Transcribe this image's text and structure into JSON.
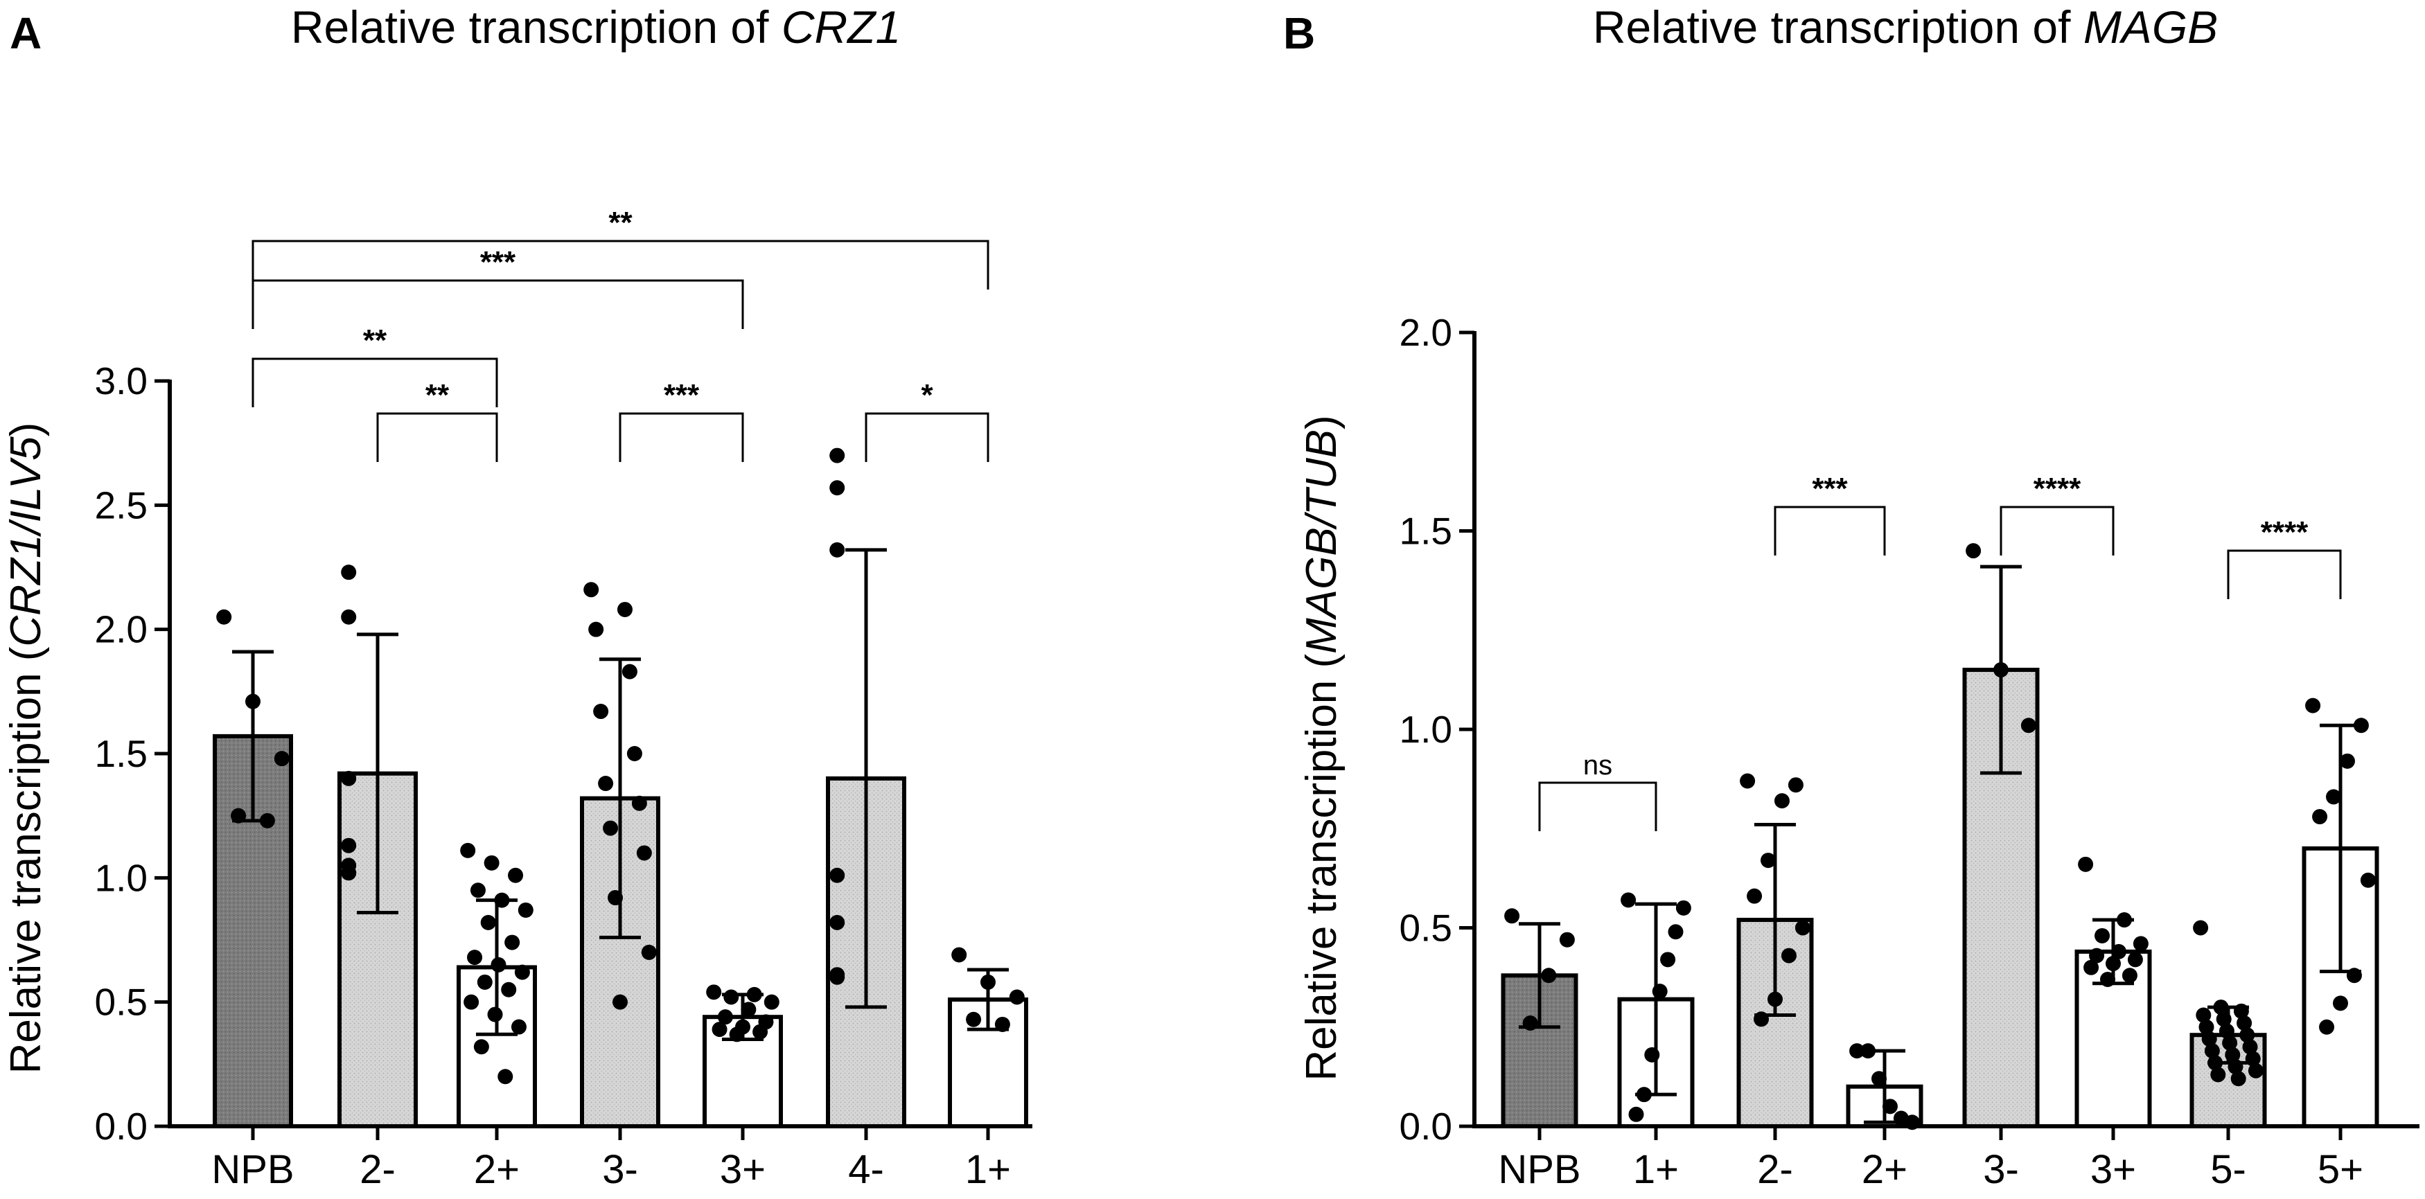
{
  "chart_data": [
    {
      "type": "bar",
      "panel": "A",
      "title": "Relative transcription of ",
      "title_italic": "CRZ1",
      "ylabel_prefix": "Relative transcription (",
      "ylabel_italic": "CRZ1/ILV5",
      "ylabel_suffix": ")",
      "xlabel": "",
      "ylim": [
        0,
        3.0
      ],
      "yticks": [
        0.0,
        0.5,
        1.0,
        1.5,
        2.0,
        2.5,
        3.0
      ],
      "ytick_labels": [
        "0.0",
        "0.5",
        "1.0",
        "1.5",
        "2.0",
        "2.5",
        "3.0"
      ],
      "categories": [
        "NPB",
        "2-",
        "2+",
        "3-",
        "3+",
        "4-",
        "1+"
      ],
      "values": [
        1.57,
        1.42,
        0.64,
        1.32,
        0.44,
        1.4,
        0.51
      ],
      "sd": [
        0.34,
        0.56,
        0.27,
        0.56,
        0.09,
        0.92,
        0.12
      ],
      "fills": [
        "dark",
        "light",
        "white",
        "light",
        "white",
        "light",
        "white"
      ],
      "points": [
        [
          2.05,
          1.71,
          1.48,
          1.25,
          1.23
        ],
        [
          2.23,
          2.05,
          1.4,
          1.13,
          1.05,
          1.02,
          1.02
        ],
        [
          1.11,
          1.06,
          1.01,
          0.95,
          0.91,
          0.87,
          0.82,
          0.74,
          0.68,
          0.65,
          0.62,
          0.58,
          0.55,
          0.5,
          0.45,
          0.4,
          0.32,
          0.2
        ],
        [
          2.16,
          2.08,
          2.0,
          1.83,
          1.67,
          1.5,
          1.38,
          1.3,
          1.2,
          1.1,
          0.92,
          0.7,
          0.5
        ],
        [
          0.54,
          0.53,
          0.52,
          0.5,
          0.47,
          0.44,
          0.42,
          0.4,
          0.39,
          0.38,
          0.37
        ],
        [
          2.7,
          2.57,
          2.32,
          1.01,
          0.82,
          0.61,
          0.6
        ],
        [
          0.69,
          0.58,
          0.52,
          0.43,
          0.41
        ]
      ],
      "significance": [
        {
          "from": "NPB",
          "to": "1+",
          "label": "**"
        },
        {
          "from": "NPB",
          "to": "3+",
          "label": "***"
        },
        {
          "from": "NPB",
          "to": "2+",
          "label": "**"
        },
        {
          "from": "2-",
          "to": "2+",
          "label": "**"
        },
        {
          "from": "3-",
          "to": "3+",
          "label": "***"
        },
        {
          "from": "4-",
          "to": "1+",
          "label": "*"
        }
      ]
    },
    {
      "type": "bar",
      "panel": "B",
      "title": "Relative transcription of ",
      "title_italic": "MAGB",
      "ylabel_prefix": "Relative transcription (",
      "ylabel_italic": "MAGB/TUB",
      "ylabel_suffix": ")",
      "xlabel": "",
      "ylim": [
        0,
        2.0
      ],
      "yticks": [
        0.0,
        0.5,
        1.0,
        1.5,
        2.0
      ],
      "ytick_labels": [
        "0.0",
        "0.5",
        "1.0",
        "1.5",
        "2.0"
      ],
      "categories": [
        "NPB",
        "1+",
        "2-",
        "2+",
        "3-",
        "3+",
        "5-",
        "5+"
      ],
      "values": [
        0.38,
        0.32,
        0.52,
        0.1,
        1.15,
        0.44,
        0.23,
        0.7
      ],
      "sd": [
        0.13,
        0.24,
        0.24,
        0.09,
        0.26,
        0.08,
        0.07,
        0.31
      ],
      "fills": [
        "dark",
        "white",
        "light",
        "white",
        "light",
        "white",
        "light",
        "white"
      ],
      "points": [
        [
          0.53,
          0.47,
          0.38,
          0.26
        ],
        [
          0.57,
          0.55,
          0.49,
          0.42,
          0.34,
          0.18,
          0.08,
          0.03
        ],
        [
          0.87,
          0.86,
          0.82,
          0.67,
          0.58,
          0.5,
          0.43,
          0.32,
          0.27
        ],
        [
          0.19,
          0.19,
          0.12,
          0.05,
          0.02,
          0.01
        ],
        [
          1.45,
          1.15,
          1.01
        ],
        [
          0.66,
          0.52,
          0.48,
          0.46,
          0.44,
          0.43,
          0.42,
          0.41,
          0.4,
          0.38,
          0.37
        ],
        [
          0.5,
          0.3,
          0.29,
          0.28,
          0.27,
          0.26,
          0.25,
          0.24,
          0.23,
          0.22,
          0.21,
          0.2,
          0.19,
          0.18,
          0.17,
          0.16,
          0.15,
          0.14,
          0.13,
          0.12
        ],
        [
          1.06,
          1.01,
          0.92,
          0.83,
          0.78,
          0.62,
          0.38,
          0.31,
          0.25
        ]
      ],
      "significance": [
        {
          "from": "NPB",
          "to": "1+",
          "label": "ns"
        },
        {
          "from": "2-",
          "to": "2+",
          "label": "***"
        },
        {
          "from": "3-",
          "to": "3+",
          "label": "****"
        },
        {
          "from": "5-",
          "to": "5+",
          "label": "****"
        }
      ]
    }
  ],
  "style": {
    "dark_fill": "#7c7c7c",
    "light_fill": "#d6d6d6",
    "white_fill": "#ffffff",
    "stroke": "#000000"
  }
}
